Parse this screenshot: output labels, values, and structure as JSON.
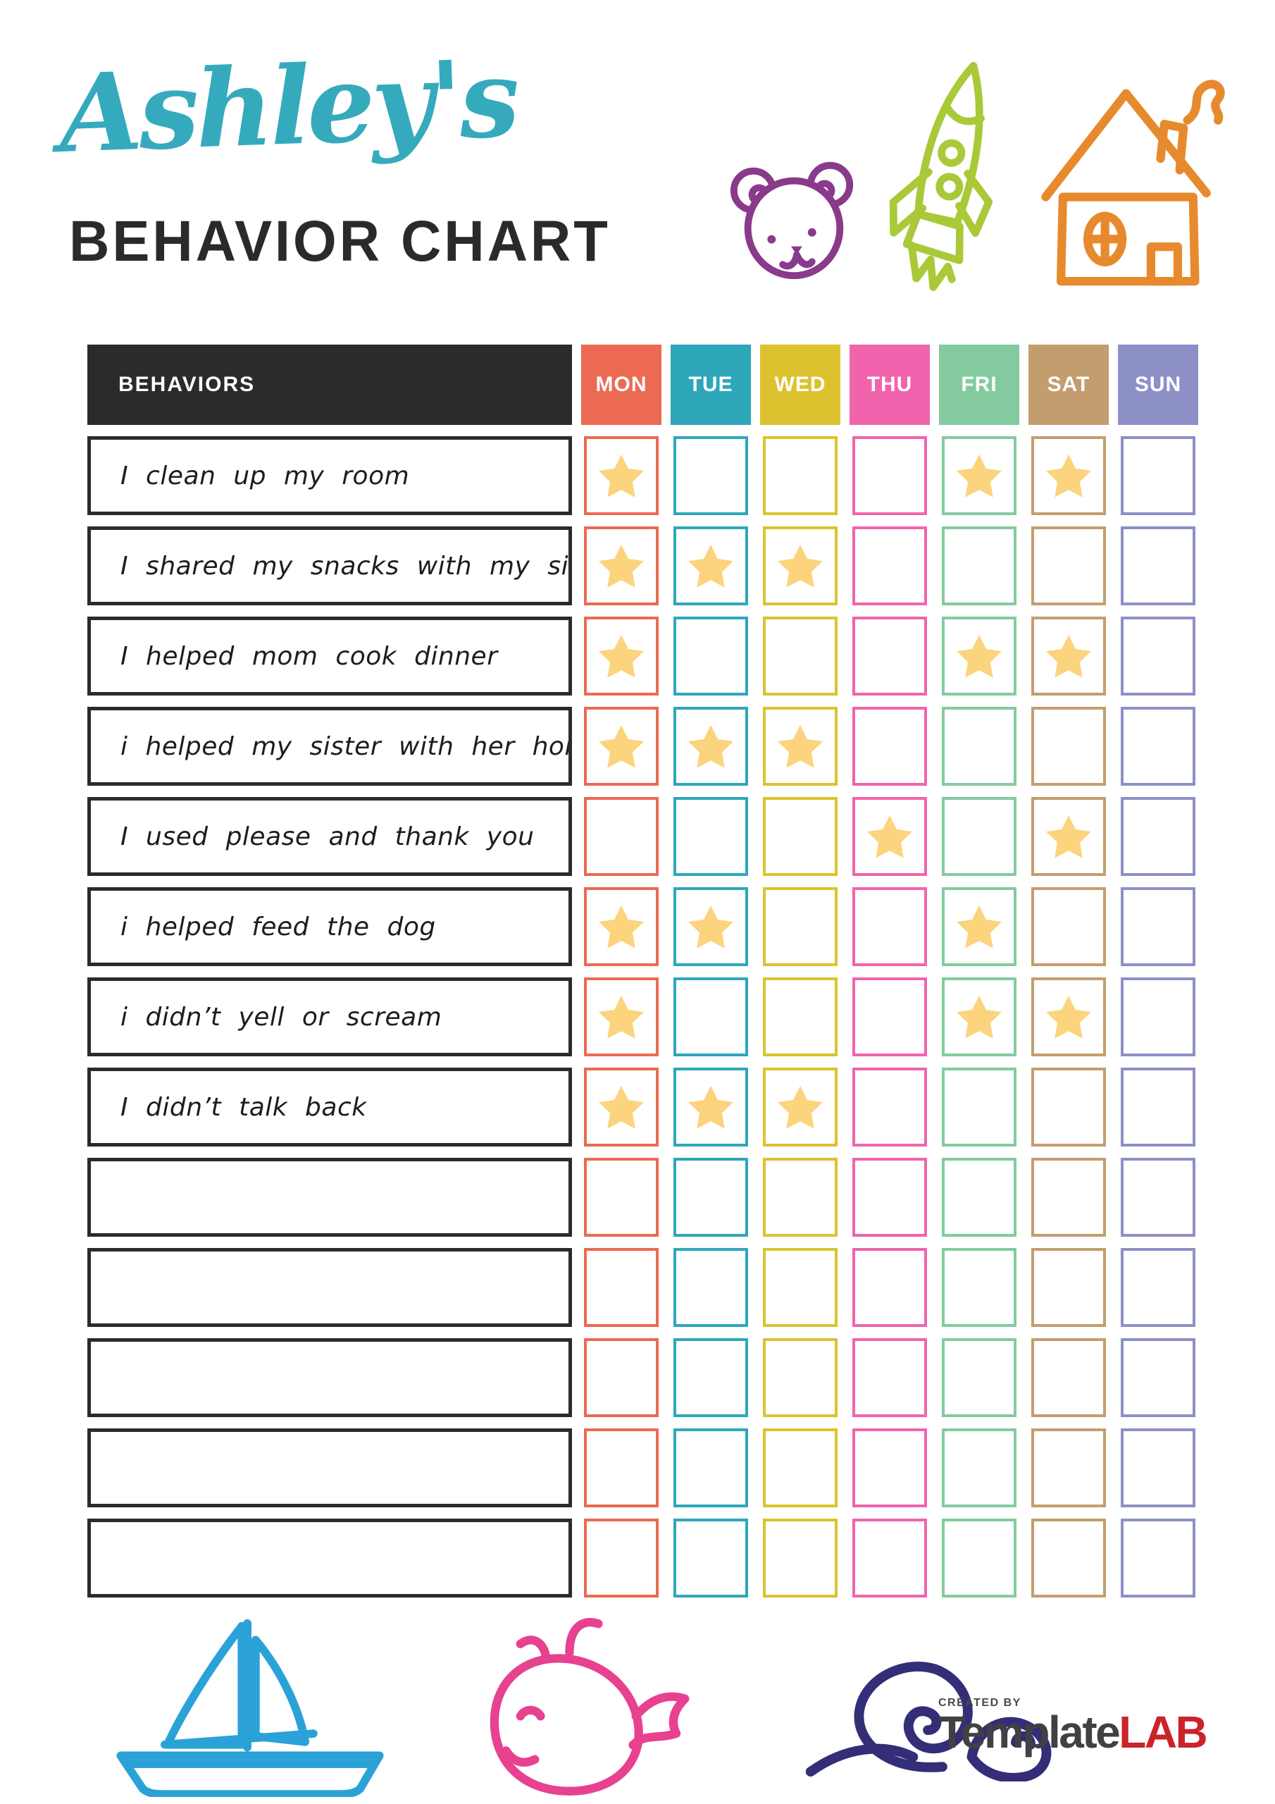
{
  "header": {
    "name_script": "Ashley's",
    "title": "BEHAVIOR CHART",
    "script_color": "#36aabd",
    "title_color": "#2a2a2a"
  },
  "doodles": {
    "bear_color": "#8a3a8a",
    "rocket_color": "#a9c938",
    "house_color": "#e78a2e",
    "sailboat_color": "#2aa2d8",
    "whale_color": "#e7418f",
    "snail_color": "#342d78"
  },
  "table": {
    "behaviors_header": "BEHAVIORS",
    "header_bg": "#2b2b2b",
    "star_color": "#fbd47d",
    "days": [
      {
        "label": "MON",
        "color": "#ec6a52"
      },
      {
        "label": "TUE",
        "color": "#2ea7ba"
      },
      {
        "label": "WED",
        "color": "#dcc22e"
      },
      {
        "label": "THU",
        "color": "#f164ad"
      },
      {
        "label": "FRI",
        "color": "#83cb9e"
      },
      {
        "label": "SAT",
        "color": "#c49d6e"
      },
      {
        "label": "SUN",
        "color": "#8d90c6"
      }
    ],
    "rows": [
      {
        "behavior": "I clean up my room",
        "stars": [
          1,
          0,
          0,
          0,
          1,
          1,
          0
        ]
      },
      {
        "behavior": "I shared my snacks with my sister",
        "stars": [
          1,
          1,
          1,
          0,
          0,
          0,
          0
        ]
      },
      {
        "behavior": "I helped mom cook dinner",
        "stars": [
          1,
          0,
          0,
          0,
          1,
          1,
          0
        ]
      },
      {
        "behavior": "i helped my sister with her homework",
        "stars": [
          1,
          1,
          1,
          0,
          0,
          0,
          0
        ]
      },
      {
        "behavior": "I used please and thank you",
        "stars": [
          0,
          0,
          0,
          1,
          0,
          1,
          0
        ]
      },
      {
        "behavior": "i helped feed the dog",
        "stars": [
          1,
          1,
          0,
          0,
          1,
          0,
          0
        ]
      },
      {
        "behavior": "i didn’t yell or scream",
        "stars": [
          1,
          0,
          0,
          0,
          1,
          1,
          0
        ]
      },
      {
        "behavior": "I didn’t talk back",
        "stars": [
          1,
          1,
          1,
          0,
          0,
          0,
          0
        ]
      },
      {
        "behavior": "",
        "stars": [
          0,
          0,
          0,
          0,
          0,
          0,
          0
        ]
      },
      {
        "behavior": "",
        "stars": [
          0,
          0,
          0,
          0,
          0,
          0,
          0
        ]
      },
      {
        "behavior": "",
        "stars": [
          0,
          0,
          0,
          0,
          0,
          0,
          0
        ]
      },
      {
        "behavior": "",
        "stars": [
          0,
          0,
          0,
          0,
          0,
          0,
          0
        ]
      },
      {
        "behavior": "",
        "stars": [
          0,
          0,
          0,
          0,
          0,
          0,
          0
        ]
      }
    ]
  },
  "footer": {
    "created_by": "CREATED BY",
    "brand_first": "Template",
    "brand_second": "LAB",
    "brand_first_color": "#414042",
    "brand_second_color": "#cc2229"
  }
}
